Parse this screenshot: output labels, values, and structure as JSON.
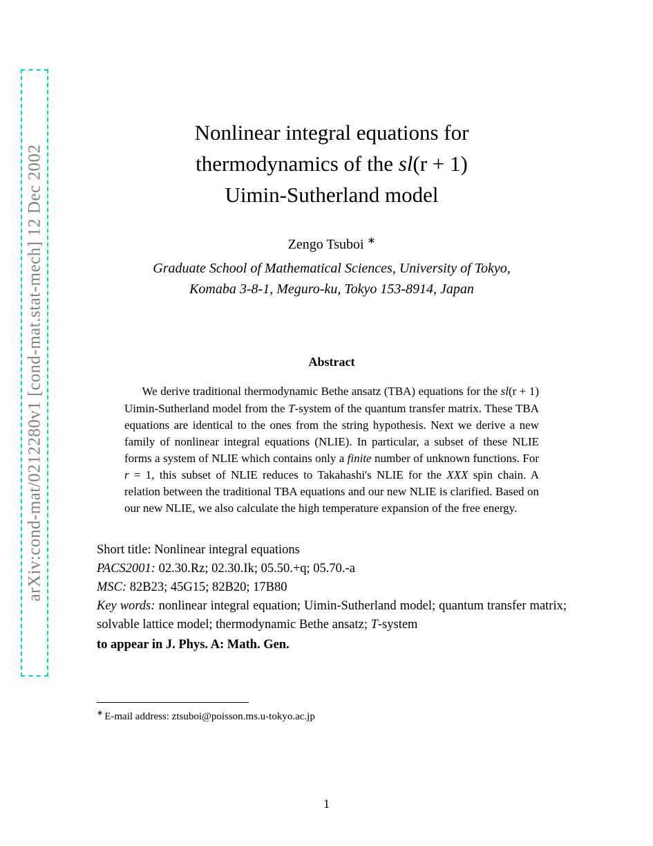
{
  "arxiv": {
    "identifier": "arXiv:cond-mat/0212280v1  [cond-mat.stat-mech]  12 Dec 2002"
  },
  "title": {
    "line1": "Nonlinear integral equations for",
    "line2_pre": "thermodynamics of the ",
    "line2_math": "sl",
    "line2_paren": "(r + 1)",
    "line3": "Uimin-Sutherland model"
  },
  "author": {
    "name": "Zengo Tsuboi ",
    "marker": "∗",
    "affiliation_line1": "Graduate School of Mathematical Sciences, University of Tokyo,",
    "affiliation_line2": "Komaba 3-8-1, Meguro-ku, Tokyo 153-8914, Japan"
  },
  "abstract": {
    "heading": "Abstract",
    "text_part1": "We derive traditional thermodynamic Bethe ansatz (TBA) equations for the ",
    "math1": "sl",
    "paren1": "(r + 1)",
    "text_part2": " Uimin-Sutherland model from the ",
    "math2": "T",
    "text_part3": "-system of the quantum transfer matrix. These TBA equations are identical to the ones from the string hypothesis. Next we derive a new family of nonlinear integral equations (NLIE). In particular, a subset of these NLIE forms a system of NLIE which contains only a ",
    "italic1": "finite",
    "text_part4": " number of unknown functions. For ",
    "math3": "r",
    "text_part5": " = 1, this subset of NLIE reduces to Takahashi's NLIE for the ",
    "math4": "XXX",
    "text_part6": " spin chain. A relation between the traditional TBA equations and our new NLIE is clarified. Based on our new NLIE, we also calculate the high temperature expansion of the free energy."
  },
  "meta": {
    "short_title_label": "Short title: ",
    "short_title_value": "Nonlinear integral equations",
    "pacs_label": "PACS2001:",
    "pacs_value": " 02.30.Rz; 02.30.Ik; 05.50.+q; 05.70.-a",
    "msc_label": "MSC:",
    "msc_value": " 82B23; 45G15; 82B20; 17B80",
    "keywords_label": "Key words:",
    "keywords_value": " nonlinear integral equation; Uimin-Sutherland model; quantum transfer matrix; solvable lattice model; thermodynamic Bethe ansatz; ",
    "keywords_math": "T",
    "keywords_suffix": "-system",
    "to_appear": "to appear in J. Phys. A: Math. Gen."
  },
  "footnote": {
    "marker": "∗",
    "text": "E-mail address: ztsuboi@poisson.ms.u-tokyo.ac.jp"
  },
  "page_number": "1",
  "colors": {
    "watermark_border": "#00d4d4",
    "watermark_text": "#808080",
    "text": "#000000",
    "background": "#ffffff"
  }
}
